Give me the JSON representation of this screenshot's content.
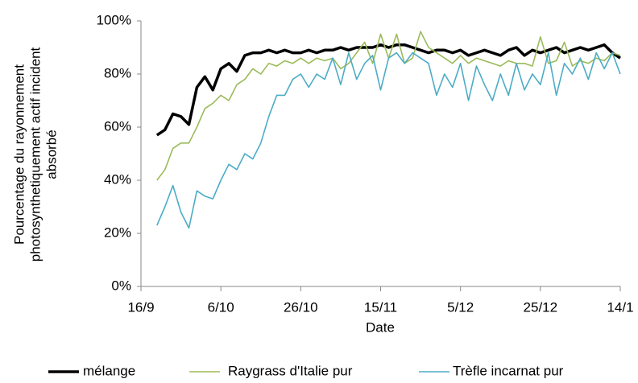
{
  "chart_data": {
    "type": "line",
    "y_label": [
      "Pourcentage du rayonnement",
      "photosynthetiquement  actif incident",
      "absorbé"
    ],
    "x_label": "Date",
    "x": [
      4,
      6,
      8,
      10,
      12,
      14,
      16,
      18,
      20,
      22,
      24,
      26,
      28,
      30,
      32,
      34,
      36,
      38,
      40,
      42,
      44,
      46,
      48,
      50,
      52,
      54,
      56,
      58,
      60,
      62,
      64,
      66,
      68,
      70,
      72,
      74,
      76,
      78,
      80,
      82,
      84,
      86,
      88,
      90,
      92,
      94,
      96,
      98,
      100,
      102,
      104,
      106,
      108,
      110,
      112,
      114,
      116,
      118,
      120
    ],
    "xlim": [
      0,
      120
    ],
    "xticks": [
      {
        "value": 0,
        "label": "16/9"
      },
      {
        "value": 20,
        "label": "6/10"
      },
      {
        "value": 40,
        "label": "26/10"
      },
      {
        "value": 60,
        "label": "15/11"
      },
      {
        "value": 80,
        "label": "5/12"
      },
      {
        "value": 100,
        "label": "25/12"
      },
      {
        "value": 120,
        "label": "14/1"
      }
    ],
    "ylim": [
      0,
      100
    ],
    "yticks": [
      {
        "value": 0,
        "label": "0%"
      },
      {
        "value": 20,
        "label": "20%"
      },
      {
        "value": 40,
        "label": "40%"
      },
      {
        "value": 60,
        "label": "60%"
      },
      {
        "value": 80,
        "label": "80%"
      },
      {
        "value": 100,
        "label": "100%"
      }
    ],
    "legend": "bottom",
    "series": [
      {
        "name": "mélange",
        "color": "#000000",
        "values": [
          57,
          59,
          65,
          64,
          61,
          75,
          79,
          74,
          82,
          84,
          81,
          87,
          88,
          88,
          89,
          88,
          89,
          88,
          88,
          89,
          88,
          89,
          89,
          90,
          89,
          90,
          90,
          90,
          91,
          90,
          91,
          91,
          90,
          89,
          88,
          89,
          89,
          88,
          89,
          87,
          88,
          89,
          88,
          87,
          89,
          90,
          87,
          89,
          88,
          89,
          90,
          88,
          89,
          90,
          89,
          90,
          91,
          88,
          86
        ]
      },
      {
        "name": "Raygrass d'Italie pur",
        "color": "#9bbb59",
        "values": [
          40,
          44,
          52,
          54,
          54,
          60,
          67,
          69,
          72,
          70,
          76,
          78,
          82,
          80,
          84,
          83,
          85,
          84,
          86,
          84,
          86,
          85,
          86,
          82,
          84,
          88,
          92,
          84,
          95,
          86,
          95,
          84,
          86,
          96,
          90,
          88,
          86,
          84,
          87,
          84,
          86,
          85,
          84,
          83,
          85,
          84,
          84,
          83,
          94,
          84,
          85,
          92,
          83,
          85,
          84,
          86,
          85,
          88,
          87
        ]
      },
      {
        "name": "Trèfle incarnat pur",
        "color": "#4bacc6",
        "values": [
          23,
          30,
          38,
          28,
          22,
          36,
          34,
          33,
          40,
          46,
          44,
          50,
          48,
          54,
          64,
          72,
          72,
          78,
          80,
          75,
          80,
          78,
          86,
          76,
          88,
          78,
          84,
          87,
          74,
          86,
          88,
          84,
          88,
          86,
          84,
          72,
          80,
          75,
          84,
          70,
          83,
          76,
          70,
          80,
          72,
          84,
          74,
          80,
          76,
          88,
          72,
          84,
          80,
          86,
          78,
          88,
          82,
          88,
          80
        ]
      }
    ]
  }
}
